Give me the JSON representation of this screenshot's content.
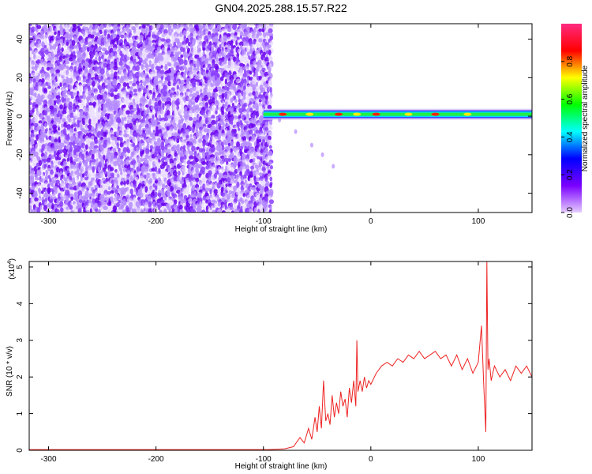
{
  "chart_data": [
    {
      "type": "heatmap",
      "title": "GN04.2025.288.15.57.R22",
      "xlabel": "Height of straight line (km)",
      "ylabel": "Frequency (Hz)",
      "xlim": [
        -318,
        150
      ],
      "ylim": [
        -50,
        48
      ],
      "x_ticks": [
        -300,
        -200,
        -100,
        0,
        100
      ],
      "x_tick_labels": [
        "-300",
        "-200",
        "-100",
        "0",
        "100"
      ],
      "y_ticks": [
        -40,
        -20,
        0,
        20,
        40
      ],
      "y_tick_labels": [
        "-40",
        "-20",
        "0",
        "20",
        "40"
      ],
      "noise_region_x": [
        -318,
        -93
      ],
      "signal_band_center_hz": 1,
      "signal_band_start_x": -100,
      "faint_trail": [
        [
          -85,
          -2
        ],
        [
          -70,
          -8
        ],
        [
          -55,
          -15
        ],
        [
          -45,
          -20
        ],
        [
          -35,
          -26
        ]
      ],
      "hot_spots_x": [
        -82,
        -57,
        -30,
        -13,
        5,
        35,
        60,
        90
      ],
      "colorbar": {
        "label": "Normalized spectral amplitude",
        "range": [
          0.0,
          1.0
        ],
        "ticks": [
          0.0,
          0.2,
          0.4,
          0.6,
          0.8
        ],
        "tick_labels": [
          "0.0",
          "0.2",
          "0.4",
          "0.6",
          "0.8"
        ],
        "colors": [
          "#e6ccff",
          "#7a00ff",
          "#0000ff",
          "#00ffff",
          "#00ff00",
          "#ffff00",
          "#ff0000",
          "#ff2a7f"
        ]
      },
      "grid": false
    },
    {
      "type": "line",
      "xlabel": "Height of straight line (km)",
      "ylabel": "SNR (10 * v/v)",
      "y_scale_label": "(x10",
      "y_scale_exp": "4",
      "xlim": [
        -318,
        150
      ],
      "ylim": [
        0,
        5.15
      ],
      "x_ticks": [
        -300,
        -200,
        -100,
        0,
        100
      ],
      "x_tick_labels": [
        "-300",
        "-200",
        "-100",
        "0",
        "100"
      ],
      "y_ticks": [
        0,
        1,
        2,
        3,
        4,
        5
      ],
      "y_tick_labels": [
        "0",
        "1",
        "2",
        "3",
        "4",
        "5"
      ],
      "series": [
        {
          "color": "#ee2222",
          "x": [
            -318,
            -250,
            -150,
            -95,
            -80,
            -72,
            -66,
            -62,
            -58,
            -55,
            -52,
            -50,
            -48,
            -46,
            -44,
            -42,
            -40,
            -38,
            -36,
            -34,
            -32,
            -30,
            -28,
            -26,
            -24,
            -22,
            -20,
            -18,
            -16,
            -14,
            -13,
            -12,
            -10,
            -8,
            -6,
            -4,
            -2,
            0,
            5,
            10,
            15,
            20,
            25,
            30,
            35,
            40,
            45,
            50,
            55,
            60,
            65,
            70,
            75,
            80,
            85,
            90,
            95,
            100,
            103,
            105,
            107,
            108,
            109,
            110,
            112,
            115,
            120,
            125,
            130,
            135,
            140,
            145,
            150
          ],
          "y": [
            0.02,
            0.02,
            0.02,
            0.02,
            0.04,
            0.1,
            0.35,
            0.2,
            0.6,
            0.3,
            0.9,
            0.5,
            1.2,
            0.6,
            1.9,
            0.8,
            1.0,
            0.7,
            1.5,
            0.9,
            1.3,
            1.0,
            1.6,
            1.2,
            1.4,
            0.9,
            1.7,
            1.3,
            1.9,
            1.2,
            3.0,
            1.6,
            1.9,
            1.6,
            2.0,
            1.7,
            1.9,
            1.8,
            2.1,
            2.3,
            2.4,
            2.3,
            2.5,
            2.4,
            2.6,
            2.5,
            2.7,
            2.5,
            2.6,
            2.7,
            2.5,
            2.6,
            2.3,
            2.6,
            2.2,
            2.5,
            2.1,
            2.4,
            3.4,
            1.8,
            0.5,
            5.15,
            2.2,
            2.5,
            1.9,
            2.3,
            2.0,
            2.2,
            1.9,
            2.3,
            2.1,
            2.3,
            2.0
          ]
        }
      ],
      "grid": false
    }
  ]
}
